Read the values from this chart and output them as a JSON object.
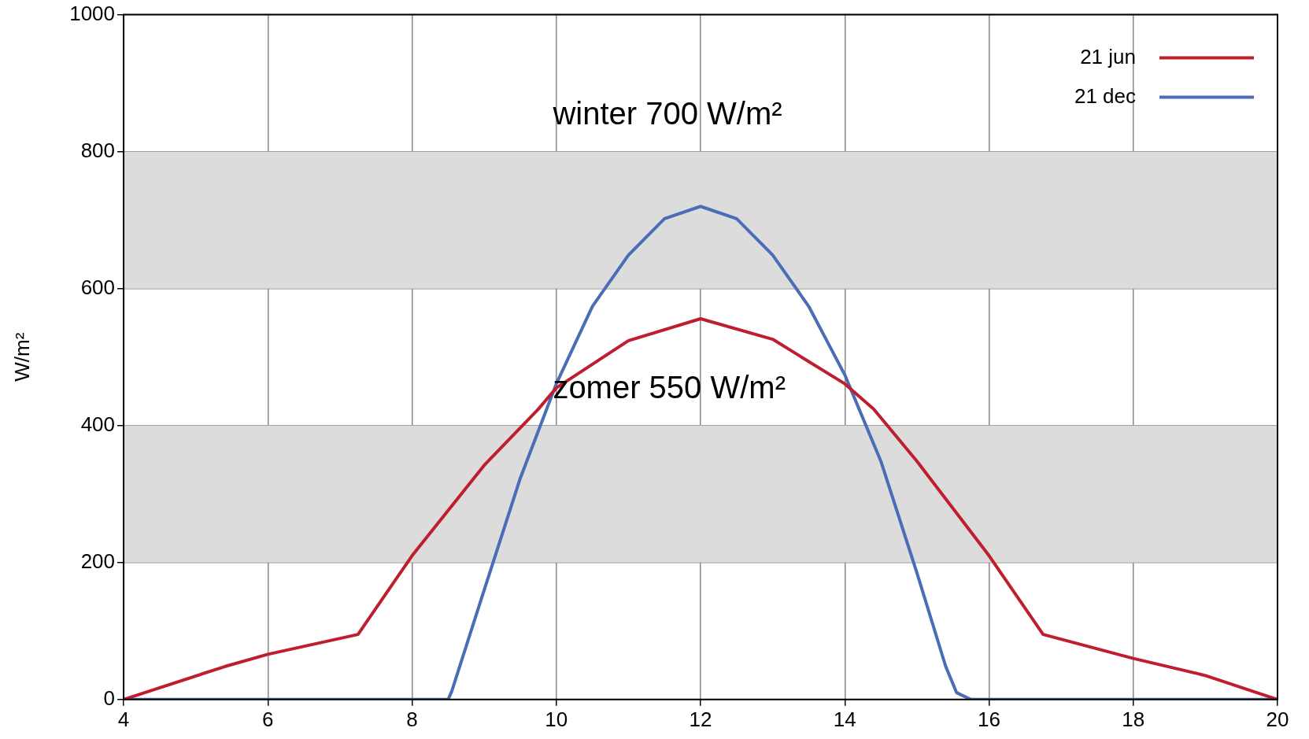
{
  "chart_data": {
    "type": "line",
    "ylabel": "W/m²",
    "xlim": [
      4,
      20
    ],
    "xticks": [
      4,
      6,
      8,
      10,
      12,
      14,
      16,
      18,
      20
    ],
    "ylim": [
      0,
      1000
    ],
    "yticks": [
      0,
      200,
      400,
      600,
      800,
      1000
    ],
    "grid": true,
    "legend": "top right",
    "marker": "none",
    "line_style": "solid",
    "bands": [
      {
        "axis": "y",
        "from": 200,
        "to": 400,
        "color": "#dcdcdc"
      },
      {
        "axis": "y",
        "from": 600,
        "to": 800,
        "color": "#dcdcdc"
      }
    ],
    "annotations": [
      "winter 700 W/m²",
      "zomer 550 W/m²"
    ],
    "series": [
      {
        "name": "21 jun",
        "color": "#be1e2d",
        "x": [
          4,
          5.4,
          6,
          7.25,
          8,
          9,
          9.75,
          10,
          11,
          12,
          13,
          14,
          14.4,
          15,
          16,
          16.75,
          18,
          19,
          20
        ],
        "values": [
          0,
          48,
          66,
          95,
          210,
          342,
          424,
          455,
          524,
          556,
          526,
          461,
          424,
          348,
          210,
          95,
          60,
          35,
          0
        ]
      },
      {
        "name": "21 dec",
        "color": "#4a6db5",
        "x": [
          4,
          8.5,
          8.55,
          9,
          9.5,
          10,
          10.5,
          11,
          11.5,
          12,
          12.5,
          13,
          13.5,
          14,
          14.5,
          15,
          15.4,
          15.55,
          15.75,
          20
        ],
        "values": [
          0,
          0,
          12,
          160,
          323,
          461,
          574,
          649,
          702,
          720,
          702,
          649,
          574,
          474,
          348,
          185,
          48,
          10,
          0,
          0
        ]
      }
    ]
  }
}
